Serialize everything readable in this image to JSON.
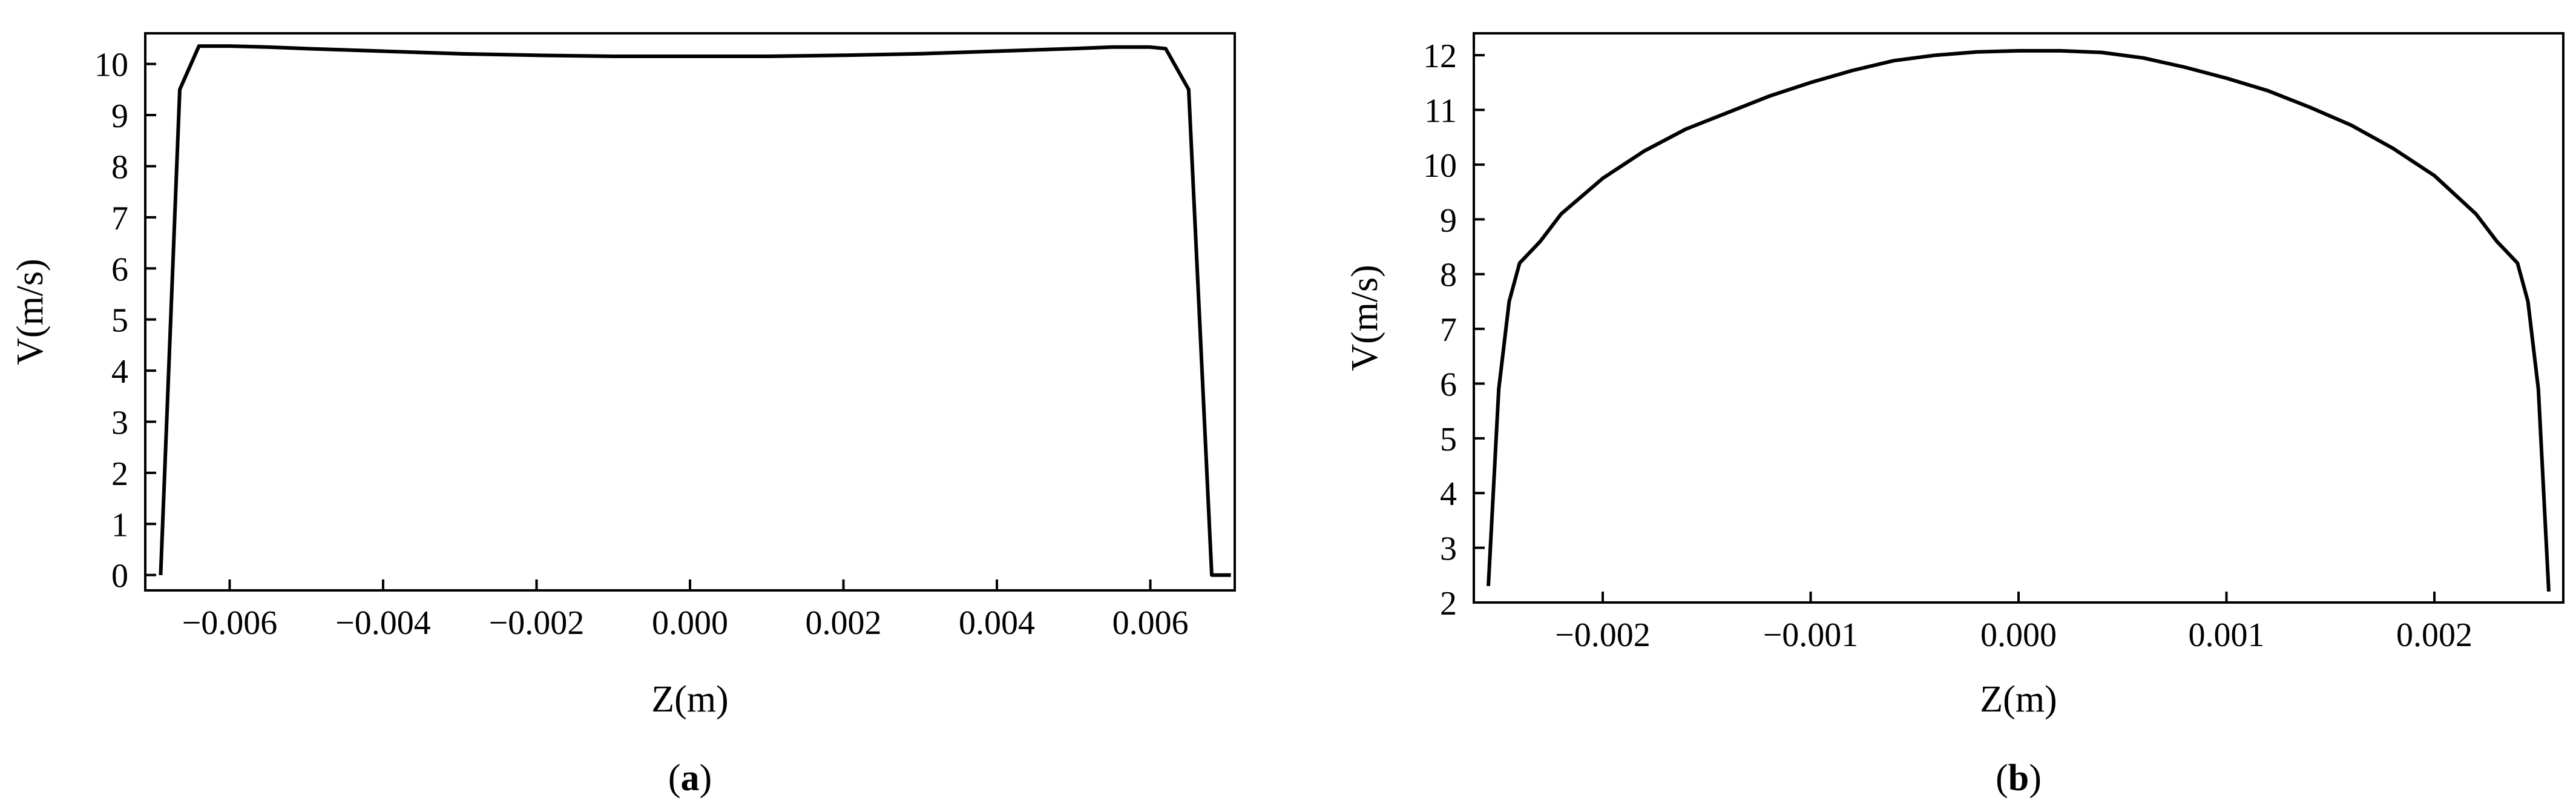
{
  "chart_data": [
    {
      "type": "line",
      "caption_prefix": "(",
      "caption_letter": "a",
      "caption_suffix": ")",
      "xlabel": "Z(m)",
      "ylabel": "V(m/s)",
      "xlim": [
        -0.0071,
        0.0071
      ],
      "ylim": [
        -0.3,
        10.6
      ],
      "xticks": [
        -0.006,
        -0.004,
        -0.002,
        0.0,
        0.002,
        0.004,
        0.006
      ],
      "xtick_labels": [
        "−0.006",
        "−0.004",
        "−0.002",
        "0.000",
        "0.002",
        "0.004",
        "0.006"
      ],
      "yticks": [
        0,
        1,
        2,
        3,
        4,
        5,
        6,
        7,
        8,
        9,
        10
      ],
      "ytick_labels": [
        "0",
        "1",
        "2",
        "3",
        "4",
        "5",
        "6",
        "7",
        "8",
        "9",
        "10"
      ],
      "grid": false,
      "series": [
        {
          "x": [
            -0.0069,
            -0.00665,
            -0.0064,
            -0.006,
            -0.0055,
            -0.005,
            -0.004,
            -0.003,
            -0.002,
            -0.001,
            0.0,
            0.001,
            0.002,
            0.003,
            0.004,
            0.005,
            0.0055,
            0.006,
            0.0062,
            0.0065,
            0.0068,
            0.00705
          ],
          "y": [
            0.0,
            9.5,
            10.35,
            10.35,
            10.33,
            10.3,
            10.25,
            10.2,
            10.17,
            10.15,
            10.15,
            10.15,
            10.17,
            10.2,
            10.25,
            10.3,
            10.33,
            10.33,
            10.3,
            9.5,
            0.0,
            0.0
          ]
        }
      ]
    },
    {
      "type": "line",
      "caption_prefix": "(",
      "caption_letter": "b",
      "caption_suffix": ")",
      "xlabel": "Z(m)",
      "ylabel": "V(m/s)",
      "xlim": [
        -0.00262,
        0.00262
      ],
      "ylim": [
        2.0,
        12.4
      ],
      "xticks": [
        -0.002,
        -0.001,
        0.0,
        0.001,
        0.002
      ],
      "xtick_labels": [
        "−0.002",
        "−0.001",
        "0.000",
        "0.001",
        "0.002"
      ],
      "yticks": [
        2,
        3,
        4,
        5,
        6,
        7,
        8,
        9,
        10,
        11,
        12
      ],
      "ytick_labels": [
        "2",
        "3",
        "4",
        "5",
        "6",
        "7",
        "8",
        "9",
        "10",
        "11",
        "12"
      ],
      "grid": false,
      "series": [
        {
          "x": [
            -0.00255,
            -0.0025,
            -0.00245,
            -0.0024,
            -0.0023,
            -0.0022,
            -0.002,
            -0.0018,
            -0.0016,
            -0.0014,
            -0.0012,
            -0.001,
            -0.0008,
            -0.0006,
            -0.0004,
            -0.0002,
            0.0,
            0.0002,
            0.0004,
            0.0006,
            0.0008,
            0.001,
            0.0012,
            0.0014,
            0.0016,
            0.0018,
            0.002,
            0.0022,
            0.0023,
            0.0024,
            0.00245,
            0.0025,
            0.00255
          ],
          "y": [
            2.3,
            5.9,
            7.5,
            8.2,
            8.6,
            9.1,
            9.75,
            10.25,
            10.65,
            10.95,
            11.25,
            11.5,
            11.72,
            11.9,
            12.0,
            12.06,
            12.08,
            12.08,
            12.05,
            11.95,
            11.78,
            11.58,
            11.35,
            11.05,
            10.72,
            10.3,
            9.8,
            9.1,
            8.6,
            8.2,
            7.5,
            5.9,
            2.2
          ]
        }
      ]
    }
  ]
}
